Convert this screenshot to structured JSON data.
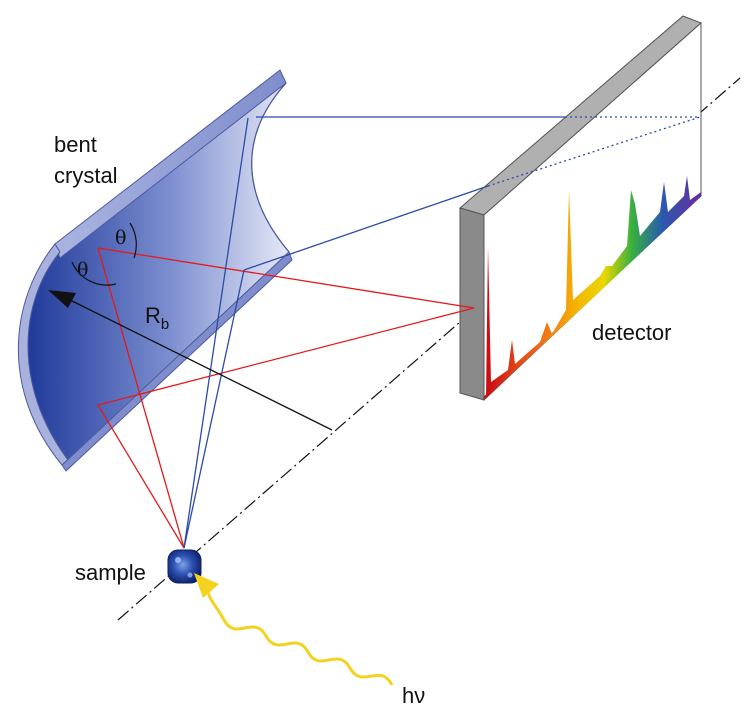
{
  "labels": {
    "crystal_line1": "bent",
    "crystal_line2": "crystal",
    "theta_1": "θ",
    "theta_2": "θ",
    "radius_main": "R",
    "radius_sub": "b",
    "detector": "detector",
    "sample": "sample",
    "photon": "hν"
  },
  "colors": {
    "incident_rays": "#e31a1c",
    "reflected_rays": "#2c4aa8",
    "photon_beam": "#f5d21f",
    "crystal_face": "#1f3a9a",
    "crystal_edge": "#8f9bd6",
    "detector_frame": "#8a8a8a",
    "detector_face": "#ffffff"
  },
  "spectrum_peaks_colors": [
    "#cc0a14",
    "#e8321a",
    "#f06a18",
    "#f5a000",
    "#f2d500",
    "#b8d416",
    "#2fa838",
    "#1a9a8a",
    "#2a5ab0",
    "#3a2a9a",
    "#6a2a9a"
  ]
}
